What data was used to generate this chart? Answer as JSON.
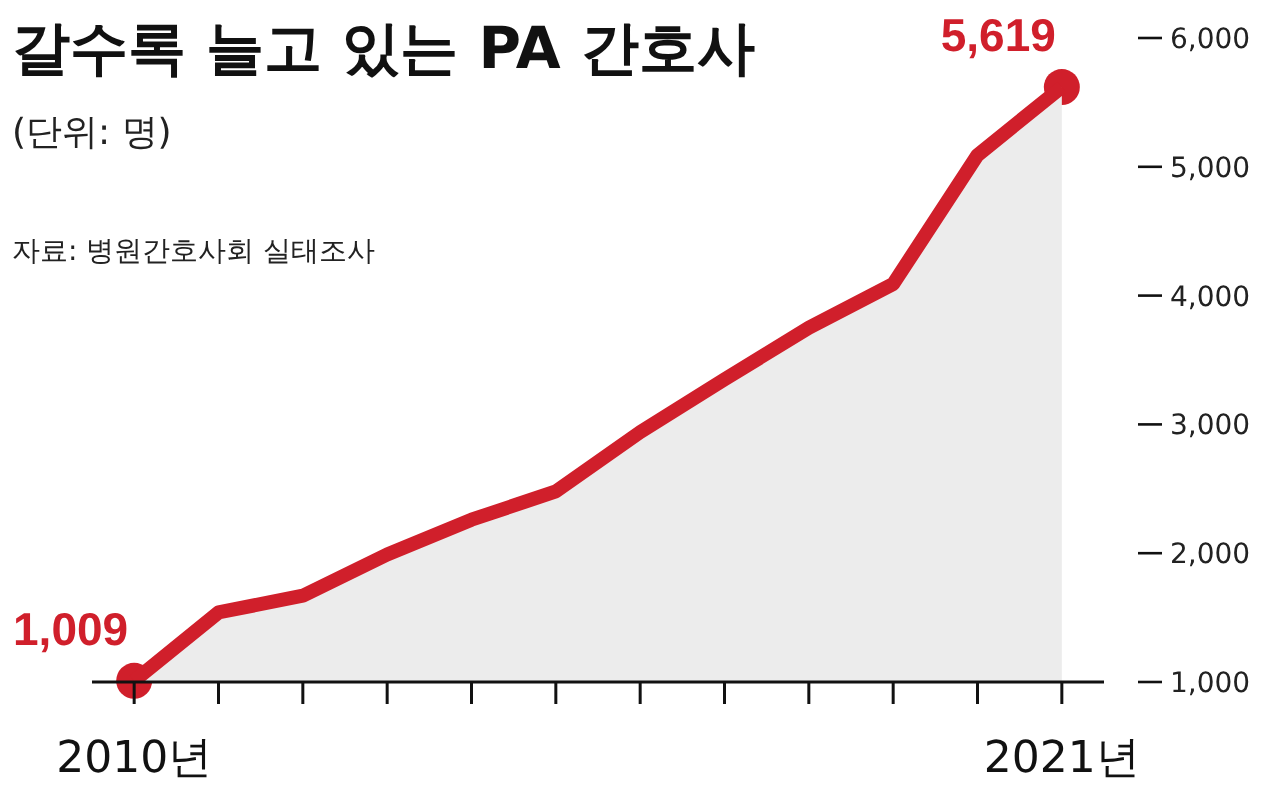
{
  "chart_data": {
    "type": "area",
    "title": "갈수록 늘고 있는 PA 간호사",
    "subtitle": "(단위: 명)",
    "annotations": [
      "자료: 병원간호사회 실태조사"
    ],
    "x": [
      2010,
      2011,
      2012,
      2013,
      2014,
      2015,
      2016,
      2017,
      2018,
      2019,
      2020,
      2021
    ],
    "series": [
      {
        "color": "#d01f2b",
        "values": [
          1009,
          1540,
          1670,
          1990,
          2260,
          2480,
          2940,
          3350,
          3750,
          4090,
          5090,
          5619
        ],
        "value_labels": [
          "1,009",
          null,
          null,
          null,
          null,
          null,
          null,
          null,
          null,
          null,
          null,
          "5,619"
        ]
      }
    ],
    "xlim": [
      2009.5,
      2021.5
    ],
    "xticks": [
      {
        "value": 2010,
        "label": "2010년"
      },
      {
        "value": 2011,
        "label": null
      },
      {
        "value": 2012,
        "label": null
      },
      {
        "value": 2013,
        "label": null
      },
      {
        "value": 2014,
        "label": null
      },
      {
        "value": 2015,
        "label": null
      },
      {
        "value": 2016,
        "label": null
      },
      {
        "value": 2017,
        "label": null
      },
      {
        "value": 2018,
        "label": null
      },
      {
        "value": 2019,
        "label": null
      },
      {
        "value": 2020,
        "label": null
      },
      {
        "value": 2021,
        "label": "2021년"
      }
    ],
    "ylim": [
      1000,
      6000
    ],
    "yticks": [
      {
        "value": 1000,
        "label": "1,000"
      },
      {
        "value": 2000,
        "label": "2,000"
      },
      {
        "value": 3000,
        "label": "3,000"
      },
      {
        "value": 4000,
        "label": "4,000"
      },
      {
        "value": 5000,
        "label": "5,000"
      },
      {
        "value": 6000,
        "label": "6,000"
      }
    ]
  }
}
